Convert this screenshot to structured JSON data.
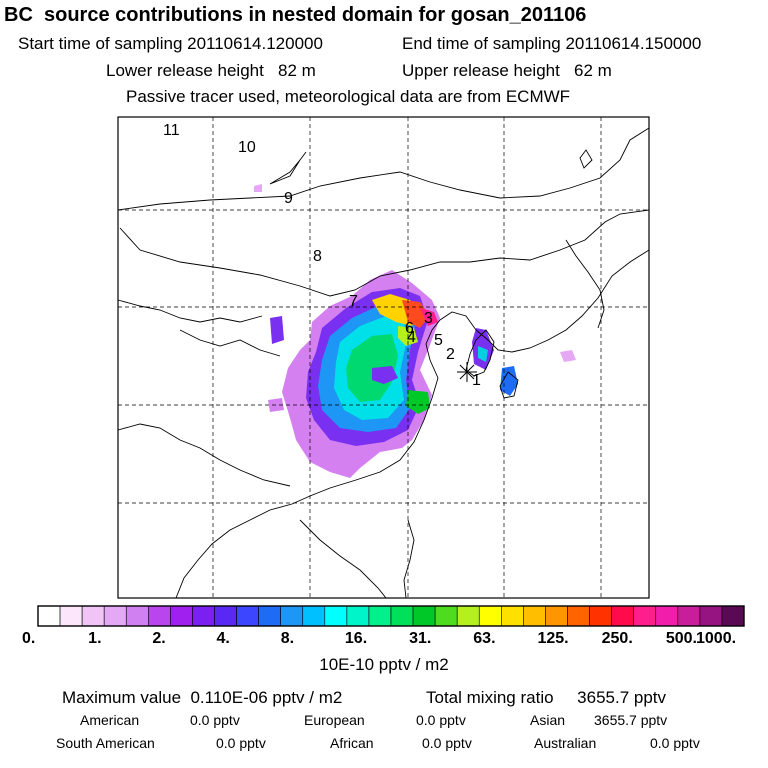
{
  "header": {
    "title": "BC  source contributions in nested domain for gosan_201106",
    "start_label": "Start time of sampling 20110614.120000",
    "end_label": "End time of sampling 20110614.150000",
    "lower_label": "Lower release height   82 m",
    "upper_label": "Upper release height   62 m",
    "note": "Passive tracer used, meteorological data are from ECMWF"
  },
  "map": {
    "markers": [
      {
        "label": "11"
      },
      {
        "label": "10"
      },
      {
        "label": "9"
      },
      {
        "label": "8"
      },
      {
        "label": "7"
      },
      {
        "label": "6"
      },
      {
        "label": "5"
      },
      {
        "label": "4"
      },
      {
        "label": "3"
      },
      {
        "label": "2"
      },
      {
        "label": "1"
      }
    ],
    "station_symbol": "*"
  },
  "colorbar": {
    "colors": [
      "#ffffff",
      "#fbe6fb",
      "#f0c4f5",
      "#e4a8f5",
      "#d080f0",
      "#b845ee",
      "#a020f0",
      "#7a20f0",
      "#5a28f5",
      "#3c46ff",
      "#1e6cf5",
      "#1e96f5",
      "#00c0ff",
      "#00ffff",
      "#00f5c8",
      "#00f08c",
      "#00e05a",
      "#00c828",
      "#50dc1e",
      "#b4f01e",
      "#ffff00",
      "#ffe100",
      "#ffbe00",
      "#ff9600",
      "#ff6400",
      "#ff3200",
      "#ff0a4b",
      "#ff1e8c",
      "#f01eaa",
      "#c81e9b",
      "#961482",
      "#5a0a55"
    ],
    "tick_labels": [
      "0.",
      "1.",
      "2.",
      "4.",
      "8.",
      "16.",
      "31.",
      "63.",
      "125.",
      "250.",
      "500.",
      "1000."
    ],
    "units": "10E-10 pptv / m2"
  },
  "summary": {
    "max_label": "Maximum value  0.110E-06 pptv / m2",
    "total_label": "Total mixing ratio     3655.7 pptv",
    "american_label": "American",
    "american_val": "0.0 pptv",
    "european_label": "European",
    "european_val": "0.0 pptv",
    "asian_label": "Asian",
    "asian_val": "3655.7 pptv",
    "south_american_label": "South American",
    "south_american_val": "0.0 pptv",
    "african_label": "African",
    "african_val": "0.0 pptv",
    "australian_label": "Australian",
    "australian_val": "0.0 pptv"
  }
}
